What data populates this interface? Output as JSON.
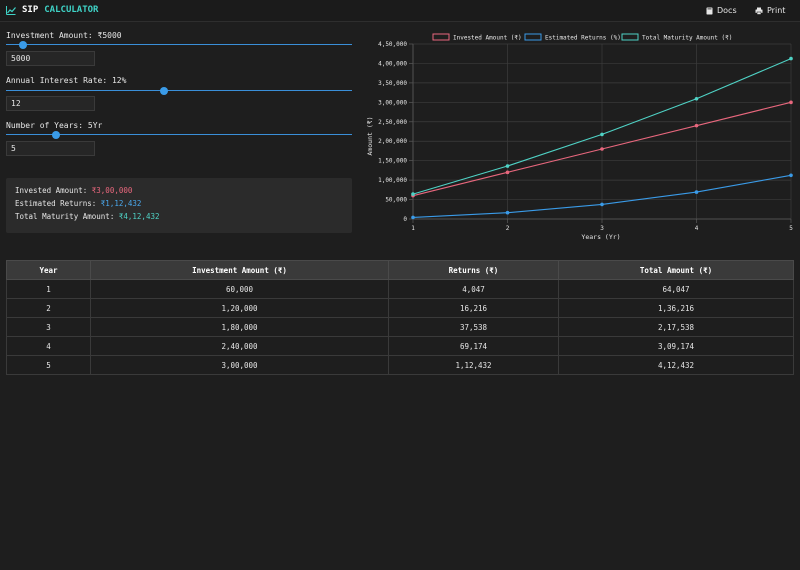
{
  "header": {
    "brand_part1": "SIP",
    "brand_part2": "CALCULATOR",
    "brand_icon": "chart-line-icon",
    "docs_label": "Docs",
    "docs_icon": "book-icon",
    "print_label": "Print",
    "print_icon": "printer-icon"
  },
  "inputs": {
    "investment": {
      "label": "Investment Amount: ₹5000",
      "value": "5000",
      "slider_fraction": 0.05
    },
    "rate": {
      "label": "Annual Interest Rate: 12%",
      "value": "12",
      "slider_fraction": 0.458
    },
    "years": {
      "label": "Number of Years: 5Yr",
      "value": "5",
      "slider_fraction": 0.145
    }
  },
  "summary": {
    "invested_label": "Invested Amount:",
    "invested_value": "₹3,00,000",
    "returns_label": "Estimated Returns:",
    "returns_value": "₹1,12,432",
    "maturity_label": "Total Maturity Amount:",
    "maturity_value": "₹4,12,432"
  },
  "colors": {
    "invested": "#e8677d",
    "returns": "#3a9be8",
    "maturity": "#4fd2c5"
  },
  "chart_data": {
    "type": "line",
    "x": [
      1,
      2,
      3,
      4,
      5
    ],
    "x_tick_labels": [
      "1",
      "2",
      "3",
      "4",
      "5"
    ],
    "xlabel": "Years (Yr)",
    "ylabel": "Amount (₹)",
    "ylim": [
      0,
      450000
    ],
    "y_ticks": [
      0,
      50000,
      100000,
      150000,
      200000,
      250000,
      300000,
      350000,
      400000,
      450000
    ],
    "y_tick_labels": [
      "0",
      "50,000",
      "1,00,000",
      "1,50,000",
      "2,00,000",
      "2,50,000",
      "3,00,000",
      "3,50,000",
      "4,00,000",
      "4,50,000"
    ],
    "grid": true,
    "legend_position": "top",
    "series": [
      {
        "name": "Invested Amount (₹)",
        "color": "#e8677d",
        "values": [
          60000,
          120000,
          180000,
          240000,
          300000
        ]
      },
      {
        "name": "Estimated Returns (%)",
        "color": "#3a9be8",
        "values": [
          4047,
          16216,
          37538,
          69174,
          112432
        ]
      },
      {
        "name": "Total Maturity Amount (₹)",
        "color": "#4fd2c5",
        "values": [
          64047,
          136216,
          217538,
          309174,
          412432
        ]
      }
    ]
  },
  "table": {
    "headers": [
      "Year",
      "Investment Amount (₹)",
      "Returns (₹)",
      "Total Amount (₹)"
    ],
    "rows": [
      [
        "1",
        "60,000",
        "4,047",
        "64,047"
      ],
      [
        "2",
        "1,20,000",
        "16,216",
        "1,36,216"
      ],
      [
        "3",
        "1,80,000",
        "37,538",
        "2,17,538"
      ],
      [
        "4",
        "2,40,000",
        "69,174",
        "3,09,174"
      ],
      [
        "5",
        "3,00,000",
        "1,12,432",
        "4,12,432"
      ]
    ]
  }
}
